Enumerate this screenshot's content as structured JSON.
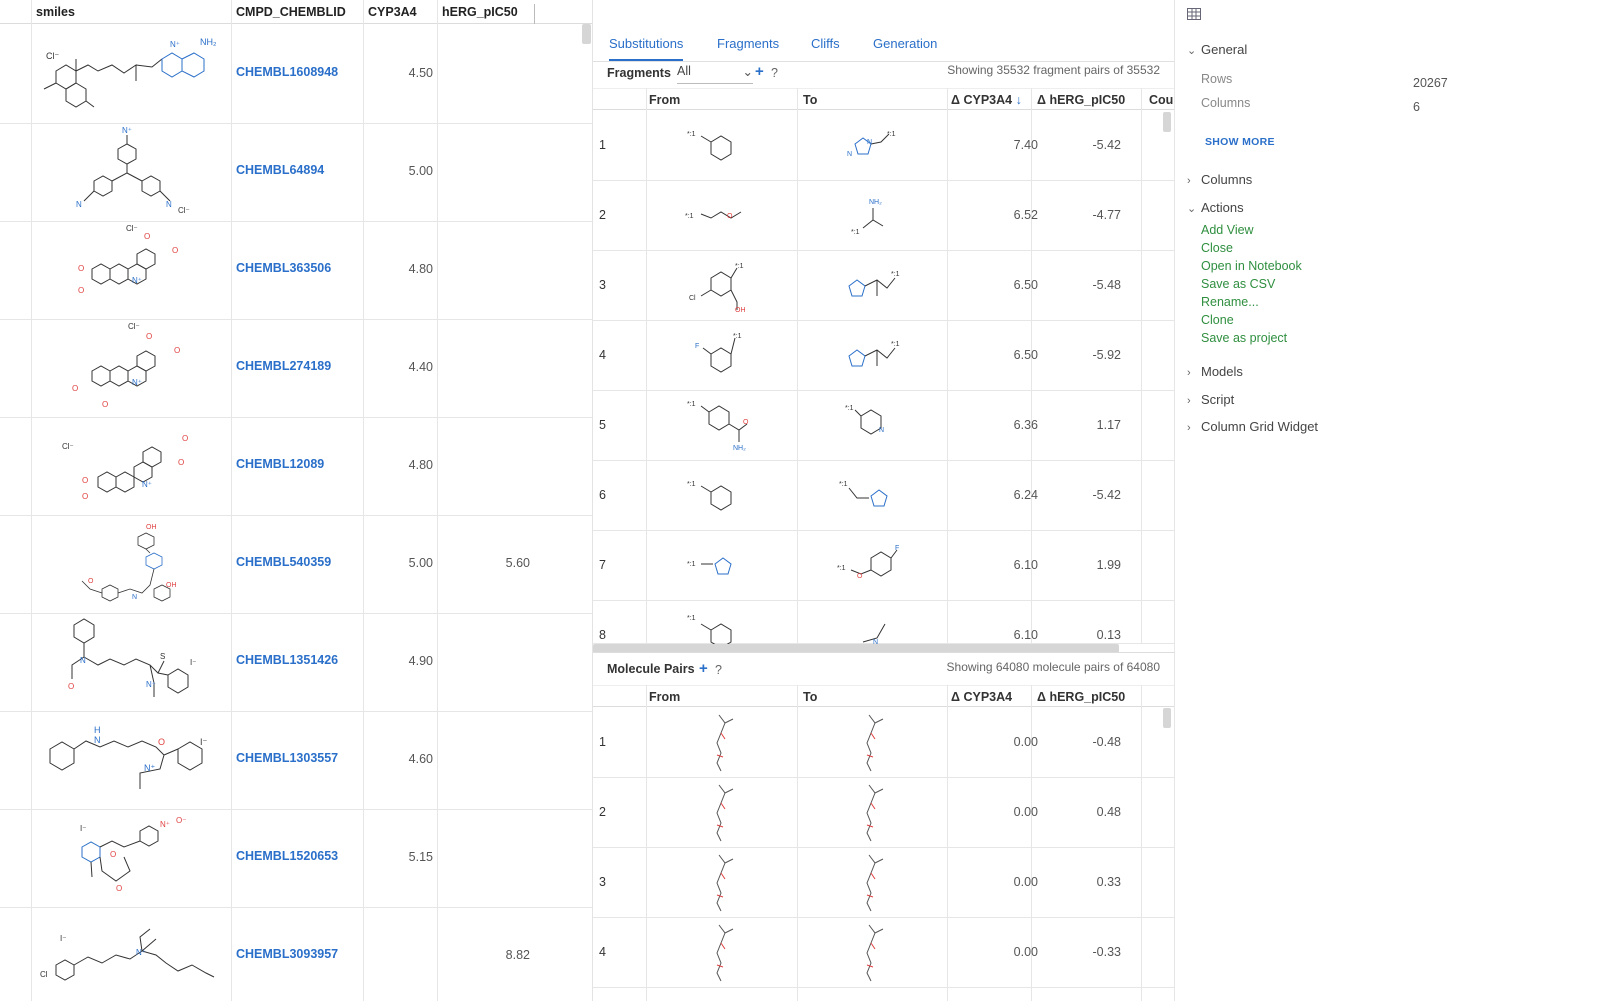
{
  "left_grid": {
    "columns": [
      "smiles",
      "CMPD_CHEMBLID",
      "CYP3A4",
      "hERG_pIC50"
    ],
    "rows": [
      {
        "id": "CHEMBL1608948",
        "cyp": "4.50",
        "herg": ""
      },
      {
        "id": "CHEMBL64894",
        "cyp": "5.00",
        "herg": ""
      },
      {
        "id": "CHEMBL363506",
        "cyp": "4.80",
        "herg": ""
      },
      {
        "id": "CHEMBL274189",
        "cyp": "4.40",
        "herg": ""
      },
      {
        "id": "CHEMBL12089",
        "cyp": "4.80",
        "herg": ""
      },
      {
        "id": "CHEMBL540359",
        "cyp": "5.00",
        "herg": "5.60"
      },
      {
        "id": "CHEMBL1351426",
        "cyp": "4.90",
        "herg": ""
      },
      {
        "id": "CHEMBL1303557",
        "cyp": "4.60",
        "herg": ""
      },
      {
        "id": "CHEMBL1520653",
        "cyp": "5.15",
        "herg": ""
      },
      {
        "id": "CHEMBL3093957",
        "cyp": "",
        "herg": "8.82"
      }
    ]
  },
  "tabs": [
    "Substitutions",
    "Fragments",
    "Cliffs",
    "Generation"
  ],
  "fragments": {
    "label": "Fragments",
    "filter_value": "All",
    "plus": "+",
    "help": "?",
    "showing": "Showing 35532 fragment pairs of 35532",
    "columns": [
      "From",
      "To",
      "Δ CYP3A4",
      "Δ hERG_pIC50",
      "Cou"
    ],
    "sort_icon": "↓",
    "rows": [
      {
        "n": "1",
        "d1": "7.40",
        "d2": "-5.42"
      },
      {
        "n": "2",
        "d1": "6.52",
        "d2": "-4.77"
      },
      {
        "n": "3",
        "d1": "6.50",
        "d2": "-5.48"
      },
      {
        "n": "4",
        "d1": "6.50",
        "d2": "-5.92"
      },
      {
        "n": "5",
        "d1": "6.36",
        "d2": "1.17"
      },
      {
        "n": "6",
        "d1": "6.24",
        "d2": "-5.42"
      },
      {
        "n": "7",
        "d1": "6.10",
        "d2": "1.99"
      },
      {
        "n": "8",
        "d1": "6.10",
        "d2": "0.13"
      }
    ]
  },
  "molecule_pairs": {
    "label": "Molecule Pairs",
    "plus": "+",
    "help": "?",
    "showing": "Showing 64080 molecule pairs of 64080",
    "columns": [
      "From",
      "To",
      "Δ CYP3A4",
      "Δ hERG_pIC50"
    ],
    "rows": [
      {
        "n": "1",
        "d1": "0.00",
        "d2": "-0.48"
      },
      {
        "n": "2",
        "d1": "0.00",
        "d2": "0.48"
      },
      {
        "n": "3",
        "d1": "0.00",
        "d2": "0.33"
      },
      {
        "n": "4",
        "d1": "0.00",
        "d2": "-0.33"
      }
    ]
  },
  "panel": {
    "grid_icon": "table-icon",
    "general": "General",
    "rows_label": "Rows",
    "rows_value": "20267",
    "cols_label": "Columns",
    "cols_value": "6",
    "show_more": "SHOW MORE",
    "columns": "Columns",
    "actions": "Actions",
    "action_items": [
      "Add View",
      "Close",
      "Open in Notebook",
      "Save as CSV",
      "Rename...",
      "Clone",
      "Save as project"
    ],
    "models": "Models",
    "script": "Script",
    "column_grid_widget": "Column Grid Widget"
  }
}
